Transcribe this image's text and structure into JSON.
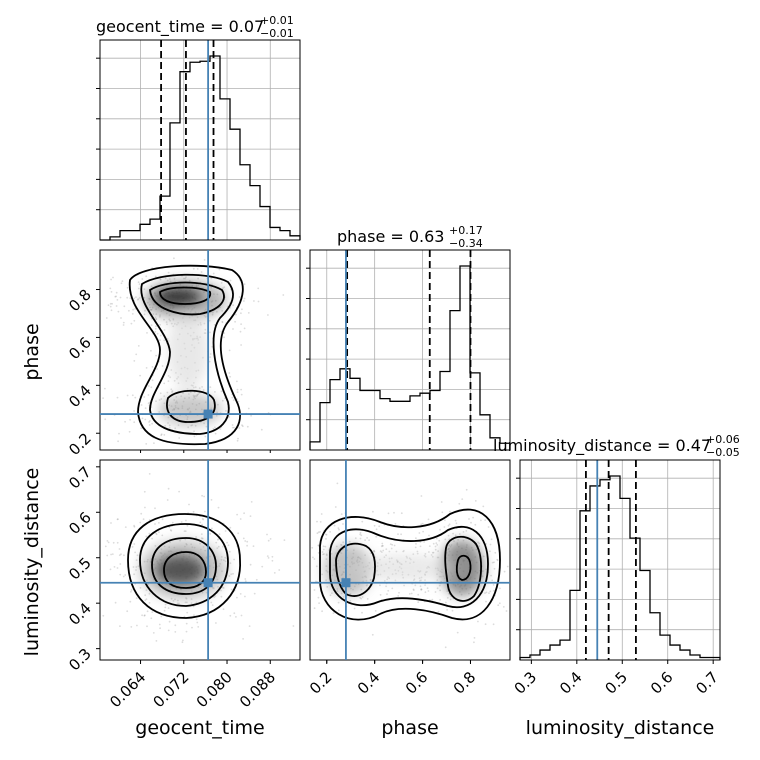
{
  "chart_data": {
    "type": "corner",
    "parameters": [
      "geocent_time",
      "phase",
      "luminosity_distance"
    ],
    "axis_labels": {
      "x": [
        "geocent_time",
        "phase",
        "luminosity_distance"
      ],
      "y": [
        "phase",
        "luminosity_distance"
      ]
    },
    "titles": [
      {
        "param": "geocent_time",
        "text": "geocent_time = 0.07",
        "plus": "+0.01",
        "minus": "−0.01"
      },
      {
        "param": "phase",
        "text": "phase = 0.63",
        "plus": "+0.17",
        "minus": "−0.34"
      },
      {
        "param": "luminosity_distance",
        "text": "luminosity_distance = 0.47",
        "plus": "+0.06",
        "minus": "−0.05"
      }
    ],
    "ranges": {
      "geocent_time": [
        0.0565,
        0.0935
      ],
      "phase": [
        0.13,
        0.965
      ],
      "luminosity_distance": [
        0.275,
        0.715
      ]
    },
    "ticks": {
      "geocent_time": [
        "0.064",
        "0.072",
        "0.080",
        "0.088"
      ],
      "phase": [
        "0.2",
        "0.4",
        "0.6",
        "0.8"
      ],
      "luminosity_distance": [
        "0.3",
        "0.4",
        "0.5",
        "0.6",
        "0.7"
      ]
    },
    "truths": {
      "geocent_time": 0.0765,
      "phase": 0.28,
      "luminosity_distance": 0.445
    },
    "quantiles": {
      "geocent_time": [
        0.0678,
        0.0724,
        0.0775
      ],
      "phase": [
        0.285,
        0.63,
        0.8
      ],
      "luminosity_distance": [
        0.42,
        0.47,
        0.53
      ]
    },
    "histograms": {
      "geocent_time": {
        "bins": [
          0.0565,
          0.0935
        ],
        "counts": [
          0,
          3,
          9,
          9,
          15,
          20,
          42,
          112,
          161,
          170,
          171,
          176,
          135,
          106,
          72,
          52,
          32,
          12,
          9,
          4
        ]
      },
      "phase": {
        "bins": [
          0.13,
          0.965
        ],
        "counts": [
          6,
          35,
          52,
          60,
          53,
          44,
          44,
          38,
          36,
          36,
          40,
          42,
          44,
          58,
          103,
          136,
          57,
          26,
          9,
          5
        ]
      },
      "luminosity_distance": {
        "bins": [
          0.275,
          0.715
        ],
        "counts": [
          2,
          4,
          8,
          12,
          16,
          56,
          120,
          140,
          145,
          148,
          130,
          98,
          72,
          38,
          20,
          12,
          8,
          4,
          2,
          2
        ]
      }
    },
    "grid": true,
    "truth_color": "#4682b4",
    "line_color": "#000000"
  }
}
